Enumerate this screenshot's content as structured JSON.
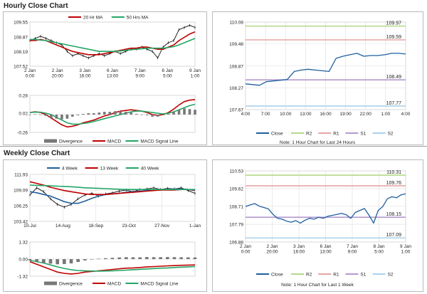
{
  "sections": {
    "hourly_title": "Hourly Close Chart",
    "weekly_title": "Weekly Close Chart"
  },
  "colors": {
    "price": "#111111",
    "ma_short": "#c00000",
    "ma_long": "#23a566",
    "close": "#1f5f9e",
    "r2": "#b5d88a",
    "r1": "#e8a4a4",
    "s1": "#b49ad0",
    "s2": "#a9d2ee",
    "histogram": "#777777",
    "grid": "#dcdcdc"
  },
  "chart_data": [
    {
      "id": "hourly_price",
      "type": "line",
      "title": "Hourly Close Chart",
      "legend": [
        "20 Hr MA",
        "50 Hrs MA"
      ],
      "legend_position": "top",
      "y_ticks": [
        "109.55",
        "108.87",
        "108.19",
        "107.52"
      ],
      "ylim": [
        107.52,
        109.55
      ],
      "x_ticks": [
        "2 Jan\n0:00",
        "2 Jan\n20:00",
        "3 Jan\n16:00",
        "6 Jan\n13:00",
        "7 Jan\n9:00",
        "8 Jan\n5:00",
        "9 Jan\n1:00"
      ],
      "series": [
        {
          "name": "Price",
          "values": [
            108.7,
            108.8,
            108.9,
            108.8,
            108.7,
            108.6,
            108.5,
            108.2,
            108.0,
            108.1,
            108.0,
            107.9,
            108.0,
            108.1,
            108.0,
            108.1,
            108.2,
            108.1,
            108.2,
            108.3,
            108.3,
            108.4,
            108.3,
            108.2,
            107.9,
            108.4,
            108.6,
            108.7,
            109.2,
            109.3,
            109.4,
            109.3
          ]
        },
        {
          "name": "20 Hr MA",
          "values": [
            108.7,
            108.7,
            108.75,
            108.7,
            108.6,
            108.5,
            108.4,
            108.3,
            108.2,
            108.15,
            108.1,
            108.05,
            108.05,
            108.05,
            108.1,
            108.15,
            108.2,
            108.25,
            108.3,
            108.35,
            108.35,
            108.4,
            108.4,
            108.35,
            108.3,
            108.3,
            108.4,
            108.5,
            108.7,
            108.85,
            109.0,
            109.1
          ]
        },
        {
          "name": "50 Hrs MA",
          "values": [
            108.75,
            108.75,
            108.72,
            108.7,
            108.65,
            108.6,
            108.55,
            108.5,
            108.45,
            108.4,
            108.35,
            108.3,
            108.25,
            108.2,
            108.2,
            108.2,
            108.2,
            108.22,
            108.25,
            108.28,
            108.3,
            108.32,
            108.35,
            108.35,
            108.35,
            108.35,
            108.38,
            108.42,
            108.5,
            108.6,
            108.7,
            108.8
          ]
        }
      ]
    },
    {
      "id": "hourly_macd",
      "type": "line",
      "legend": [
        "Divergence",
        "MACD",
        "MACD Signal Line"
      ],
      "legend_position": "bottom",
      "y_ticks": [
        "0.28",
        "0.02",
        "-0.26"
      ],
      "ylim": [
        -0.26,
        0.28
      ],
      "series": [
        {
          "name": "MACD",
          "values": [
            0.03,
            0.04,
            0.03,
            0.0,
            -0.05,
            -0.1,
            -0.15,
            -0.18,
            -0.17,
            -0.15,
            -0.12,
            -0.1,
            -0.08,
            -0.05,
            -0.02,
            0.0,
            0.03,
            0.05,
            0.06,
            0.07,
            0.06,
            0.05,
            0.03,
            0.0,
            -0.01,
            0.0,
            0.03,
            0.08,
            0.14,
            0.19,
            0.21,
            0.22
          ]
        },
        {
          "name": "MACD Signal Line",
          "values": [
            0.03,
            0.035,
            0.035,
            0.02,
            0.0,
            -0.04,
            -0.08,
            -0.12,
            -0.14,
            -0.14,
            -0.13,
            -0.12,
            -0.1,
            -0.08,
            -0.06,
            -0.04,
            -0.02,
            0.0,
            0.02,
            0.04,
            0.05,
            0.05,
            0.04,
            0.03,
            0.02,
            0.01,
            0.02,
            0.04,
            0.07,
            0.1,
            0.13,
            0.15
          ]
        },
        {
          "name": "Divergence",
          "values": [
            0.0,
            0.005,
            -0.005,
            -0.02,
            -0.05,
            -0.06,
            -0.07,
            -0.06,
            -0.03,
            -0.01,
            0.01,
            0.02,
            0.02,
            0.03,
            0.04,
            0.04,
            0.05,
            0.05,
            0.04,
            0.03,
            0.01,
            0.0,
            -0.01,
            -0.03,
            -0.03,
            -0.01,
            0.01,
            0.04,
            0.07,
            0.09,
            0.08,
            0.07
          ]
        }
      ]
    },
    {
      "id": "hourly_close",
      "type": "line",
      "note": "Note: 1 Hour Chart for Last 24 Hours",
      "legend": [
        "Close",
        "R2",
        "R1",
        "S1",
        "S2"
      ],
      "legend_position": "bottom",
      "y_ticks": [
        "110.08",
        "109.48",
        "108.87",
        "108.27",
        "107.67"
      ],
      "ylim": [
        107.67,
        110.08
      ],
      "x_ticks": [
        "4:00",
        "7:00",
        "10:00",
        "13:00",
        "16:00",
        "19:00",
        "22:00",
        "1:00",
        "4:00"
      ],
      "levels": [
        {
          "name": "R2",
          "value": 109.97,
          "label": "109.97"
        },
        {
          "name": "R1",
          "value": 109.59,
          "label": "109.59"
        },
        {
          "name": "S1",
          "value": 108.49,
          "label": "108.49"
        },
        {
          "name": "S2",
          "value": 107.77,
          "label": "107.77"
        }
      ],
      "series": [
        {
          "name": "Close",
          "values": [
            108.38,
            108.36,
            108.34,
            108.44,
            108.46,
            108.48,
            108.5,
            108.72,
            108.76,
            108.78,
            108.76,
            108.74,
            108.72,
            109.08,
            109.14,
            109.18,
            109.22,
            109.14,
            109.16,
            109.16,
            109.18,
            109.22,
            109.22,
            109.2
          ]
        }
      ]
    },
    {
      "id": "weekly_price",
      "type": "line",
      "title": "Weekly Close Chart",
      "legend": [
        "4 Week",
        "13 Week",
        "40 Week"
      ],
      "legend_position": "top",
      "y_ticks": [
        "111.93",
        "109.09",
        "106.25",
        "103.42"
      ],
      "ylim": [
        103.42,
        111.93
      ],
      "x_ticks": [
        "10-Jul",
        "14-Aug",
        "18-Sep",
        "23-Oct",
        "27-Nov",
        "1-Jan"
      ],
      "series": [
        {
          "name": "Price",
          "values": [
            108.2,
            109.5,
            108.8,
            107.5,
            106.5,
            106.0,
            106.5,
            107.5,
            108.2,
            108.5,
            108.0,
            108.4,
            108.6,
            108.9,
            109.1,
            108.8,
            109.2,
            109.3,
            109.5,
            109.2,
            109.4,
            109.3,
            109.5,
            109.0,
            108.5
          ]
        },
        {
          "name": "4 Week",
          "values": [
            108.8,
            108.6,
            108.3,
            108.0,
            107.5,
            107.0,
            106.7,
            106.7,
            107.1,
            107.6,
            108.0,
            108.3,
            108.4,
            108.5,
            108.7,
            108.8,
            108.9,
            109.0,
            109.1,
            109.2,
            109.2,
            109.3,
            109.3,
            109.2,
            109.0
          ]
        },
        {
          "name": "13 Week",
          "values": [
            110.6,
            110.3,
            110.0,
            109.6,
            109.3,
            109.0,
            108.8,
            108.6,
            108.4,
            108.3,
            108.3,
            108.3,
            108.4,
            108.5,
            108.6,
            108.7,
            108.8,
            108.9,
            109.0,
            109.1,
            109.1,
            109.1,
            109.2,
            109.2,
            109.1
          ]
        },
        {
          "name": "40 Week",
          "values": [
            110.0,
            109.95,
            109.9,
            109.85,
            109.8,
            109.75,
            109.7,
            109.6,
            109.5,
            109.45,
            109.4,
            109.35,
            109.3,
            109.25,
            109.2,
            109.2,
            109.2,
            109.2,
            109.2,
            109.2,
            109.2,
            109.2,
            109.2,
            109.2,
            109.2
          ]
        }
      ]
    },
    {
      "id": "weekly_macd",
      "type": "line",
      "legend": [
        "Divergence",
        "MACD",
        "MACD Signal Line"
      ],
      "legend_position": "bottom",
      "y_ticks": [
        "1.32",
        "0.00",
        "-1.32"
      ],
      "ylim": [
        -1.32,
        1.32
      ],
      "series": [
        {
          "name": "MACD",
          "values": [
            -0.2,
            -0.4,
            -0.6,
            -0.8,
            -1.0,
            -1.1,
            -1.15,
            -1.1,
            -1.0,
            -0.95,
            -0.9,
            -0.85,
            -0.8,
            -0.75,
            -0.7,
            -0.68,
            -0.65,
            -0.6,
            -0.58,
            -0.55,
            -0.52,
            -0.5,
            -0.48,
            -0.46,
            -0.45
          ]
        },
        {
          "name": "MACD Signal Line",
          "values": [
            -0.1,
            -0.2,
            -0.3,
            -0.45,
            -0.6,
            -0.72,
            -0.82,
            -0.88,
            -0.9,
            -0.92,
            -0.93,
            -0.92,
            -0.9,
            -0.88,
            -0.85,
            -0.82,
            -0.79,
            -0.76,
            -0.73,
            -0.7,
            -0.68,
            -0.65,
            -0.62,
            -0.6,
            -0.58
          ]
        },
        {
          "name": "Divergence",
          "values": [
            -0.1,
            -0.2,
            -0.3,
            -0.35,
            -0.4,
            -0.38,
            -0.33,
            -0.22,
            -0.1,
            -0.03,
            0.03,
            0.07,
            0.1,
            0.13,
            0.15,
            0.14,
            0.14,
            0.16,
            0.15,
            0.15,
            0.16,
            0.15,
            0.14,
            0.14,
            0.13
          ]
        }
      ]
    },
    {
      "id": "weekly_close",
      "type": "line",
      "note": "Note: 1 Hour Chart for Last 1 Week",
      "legend": [
        "Close",
        "R2",
        "R1",
        "S1",
        "S2"
      ],
      "legend_position": "bottom",
      "y_ticks": [
        "110.53",
        "109.62",
        "108.71",
        "107.79",
        "106.88"
      ],
      "ylim": [
        106.88,
        110.53
      ],
      "x_ticks": [
        "2 Jan\n0:00",
        "2 Jan\n20:00",
        "3 Jan\n16:00",
        "6 Jan\n13:00",
        "7 Jan\n9:00",
        "8 Jan\n5:00",
        "9 Jan\n1:00"
      ],
      "levels": [
        {
          "name": "R2",
          "value": 110.31,
          "label": "110.31"
        },
        {
          "name": "R1",
          "value": 109.76,
          "label": "109.76"
        },
        {
          "name": "S1",
          "value": 108.15,
          "label": "108.15"
        },
        {
          "name": "S2",
          "value": 107.09,
          "label": "107.09"
        }
      ],
      "series": [
        {
          "name": "Close",
          "values": [
            108.7,
            108.78,
            108.85,
            108.72,
            108.65,
            108.58,
            108.3,
            108.1,
            108.05,
            107.95,
            107.9,
            107.98,
            107.85,
            108.0,
            108.1,
            108.05,
            108.15,
            108.1,
            108.2,
            108.25,
            108.3,
            108.35,
            108.28,
            108.1,
            108.4,
            108.5,
            108.6,
            108.25,
            107.85,
            108.5,
            108.7,
            109.1,
            109.2,
            109.15,
            109.3,
            109.35
          ]
        }
      ]
    }
  ]
}
